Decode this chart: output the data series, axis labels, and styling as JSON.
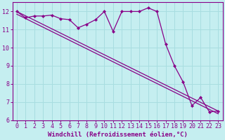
{
  "xlabel": "Windchill (Refroidissement éolien,°C)",
  "xlim_min": -0.5,
  "xlim_max": 23.5,
  "ylim_min": 6.0,
  "ylim_max": 12.5,
  "yticks": [
    6,
    7,
    8,
    9,
    10,
    11,
    12
  ],
  "xticks": [
    0,
    1,
    2,
    3,
    4,
    5,
    6,
    7,
    8,
    9,
    10,
    11,
    12,
    13,
    14,
    15,
    16,
    17,
    18,
    19,
    20,
    21,
    22,
    23
  ],
  "bg_color": "#c5eef0",
  "grid_color": "#a8dde0",
  "line_color": "#880088",
  "data_x": [
    0,
    1,
    2,
    3,
    4,
    5,
    6,
    7,
    8,
    9,
    10,
    11,
    12,
    13,
    14,
    15,
    16,
    17,
    18,
    19,
    20,
    21,
    22,
    23
  ],
  "data_y": [
    12.0,
    11.65,
    11.75,
    11.75,
    11.8,
    11.6,
    11.55,
    11.1,
    11.3,
    11.55,
    12.0,
    10.9,
    12.0,
    12.0,
    12.0,
    12.2,
    12.0,
    10.2,
    9.0,
    8.1,
    6.8,
    7.25,
    6.45,
    6.5
  ],
  "trend1_x": [
    0,
    23
  ],
  "trend1_y": [
    12.0,
    6.5
  ],
  "trend2_x": [
    0,
    23
  ],
  "trend2_y": [
    11.85,
    6.35
  ],
  "font_color": "#880088",
  "tick_fontsize": 6.0,
  "label_fontsize": 6.5
}
